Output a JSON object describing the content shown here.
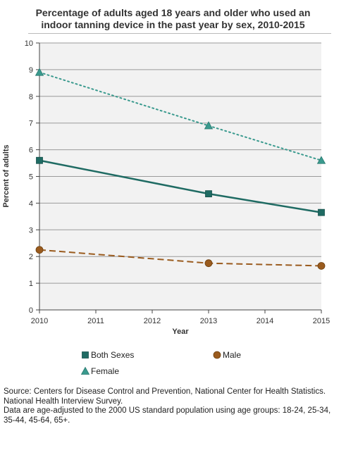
{
  "chart_data": {
    "type": "line",
    "title": "Percentage of adults aged 18 years and older who used an indoor tanning device in the past year by sex, 2010-2015",
    "title_lines": [
      "Percentage of adults aged 18 years and older who used an",
      "indoor tanning device in the past year by sex, 2010-2015"
    ],
    "xlabel": "Year",
    "ylabel": "Percent of adults",
    "x_ticks": [
      2010,
      2011,
      2012,
      2013,
      2014,
      2015
    ],
    "y_ticks": [
      0,
      1,
      2,
      3,
      4,
      5,
      6,
      7,
      8,
      9,
      10
    ],
    "xlim": [
      2010,
      2015
    ],
    "ylim": [
      0,
      10
    ],
    "grid": true,
    "legend_position": "bottom",
    "series": [
      {
        "name": "Both Sexes",
        "x": [
          2010,
          2013,
          2015
        ],
        "values": [
          5.6,
          4.35,
          3.65
        ],
        "color": "#1f6b63",
        "style": "solid",
        "marker": "square"
      },
      {
        "name": "Male",
        "x": [
          2010,
          2013,
          2015
        ],
        "values": [
          2.25,
          1.75,
          1.65
        ],
        "color": "#9a5b1e",
        "style": "dashed",
        "marker": "circle"
      },
      {
        "name": "Female",
        "x": [
          2010,
          2013,
          2015
        ],
        "values": [
          8.9,
          6.9,
          5.6
        ],
        "color": "#3a9a8e",
        "style": "dotted",
        "marker": "triangle"
      }
    ]
  },
  "source_lines": [
    "Source: Centers for Disease Control and Prevention, National Center for Health Statistics.",
    "National Health Interview Survey.",
    "Data are age-adjusted to the 2000 US standard population using age groups: 18-24, 25-34,",
    "35-44, 45-64, 65+."
  ]
}
